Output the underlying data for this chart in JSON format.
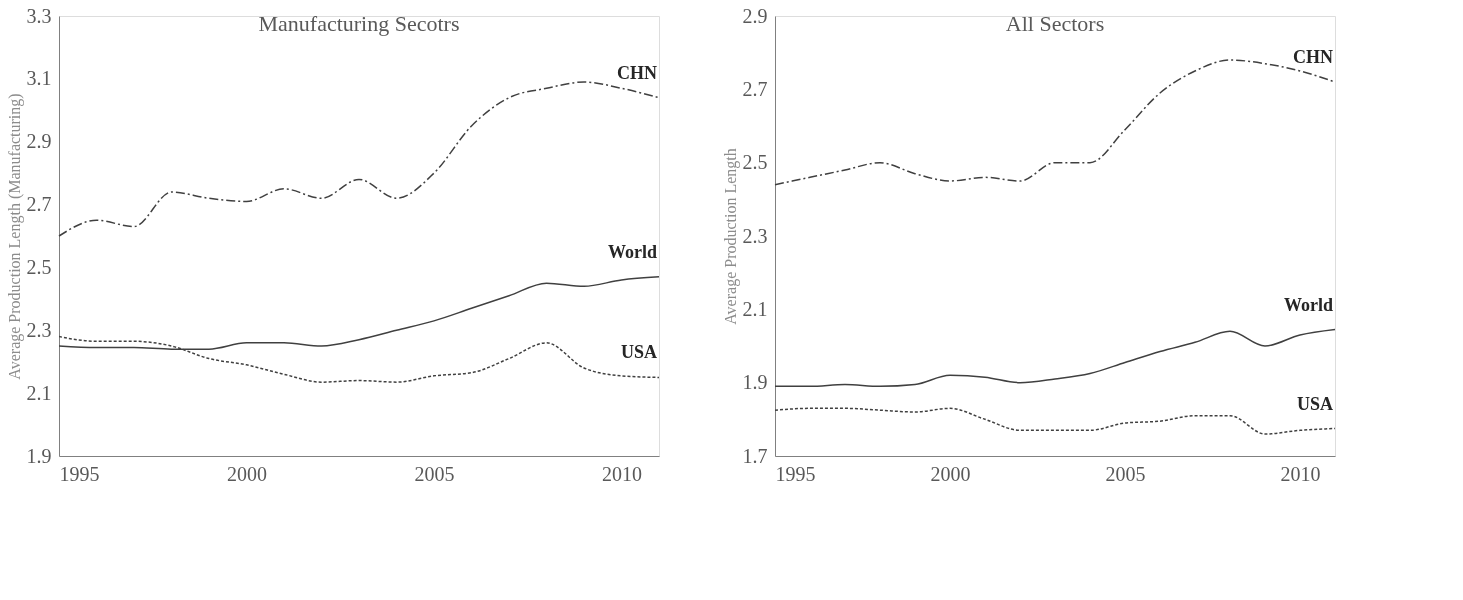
{
  "chart_data": [
    {
      "type": "line",
      "title": "Manufacturing Secotrs",
      "ylabel": "Average Production Length (Manufacturing)",
      "x": [
        1995,
        1996,
        1997,
        1998,
        1999,
        2000,
        2001,
        2002,
        2003,
        2004,
        2005,
        2006,
        2007,
        2008,
        2009,
        2010,
        2011
      ],
      "xlim": [
        1995,
        2011
      ],
      "xticks": [
        1995,
        2000,
        2005,
        2010
      ],
      "ylim": [
        1.9,
        3.3
      ],
      "yticks": [
        1.9,
        2.1,
        2.3,
        2.5,
        2.7,
        2.9,
        3.1,
        3.3
      ],
      "grid": false,
      "marker": "none",
      "series": [
        {
          "name": "CHN",
          "color": "#404040",
          "line_style": "dashed",
          "values": [
            2.6,
            2.65,
            2.63,
            2.74,
            2.72,
            2.71,
            2.75,
            2.72,
            2.78,
            2.72,
            2.8,
            2.95,
            3.04,
            3.07,
            3.09,
            3.07,
            3.04
          ]
        },
        {
          "name": "World",
          "color": "#404040",
          "line_style": "solid",
          "values": [
            2.25,
            2.245,
            2.245,
            2.24,
            2.24,
            2.26,
            2.26,
            2.25,
            2.27,
            2.3,
            2.33,
            2.37,
            2.41,
            2.45,
            2.44,
            2.46,
            2.47
          ]
        },
        {
          "name": "USA",
          "color": "#404040",
          "line_style": "dotted",
          "values": [
            2.28,
            2.265,
            2.265,
            2.25,
            2.21,
            2.19,
            2.16,
            2.135,
            2.14,
            2.135,
            2.155,
            2.165,
            2.21,
            2.26,
            2.18,
            2.155,
            2.15
          ]
        }
      ]
    },
    {
      "type": "line",
      "title": "All Sectors",
      "ylabel": "Average Production Length",
      "x": [
        1995,
        1996,
        1997,
        1998,
        1999,
        2000,
        2001,
        2002,
        2003,
        2004,
        2005,
        2006,
        2007,
        2008,
        2009,
        2010,
        2011
      ],
      "xlim": [
        1995,
        2011
      ],
      "xticks": [
        1995,
        2000,
        2005,
        2010
      ],
      "ylim": [
        1.7,
        2.9
      ],
      "yticks": [
        1.7,
        1.9,
        2.1,
        2.3,
        2.5,
        2.7,
        2.9
      ],
      "grid": false,
      "marker": "none",
      "series": [
        {
          "name": "CHN",
          "color": "#404040",
          "line_style": "dashed",
          "values": [
            2.44,
            2.46,
            2.48,
            2.5,
            2.47,
            2.45,
            2.46,
            2.45,
            2.5,
            2.5,
            2.59,
            2.69,
            2.75,
            2.78,
            2.77,
            2.75,
            2.72
          ]
        },
        {
          "name": "World",
          "color": "#404040",
          "line_style": "solid",
          "values": [
            1.89,
            1.89,
            1.895,
            1.89,
            1.895,
            1.92,
            1.915,
            1.9,
            1.91,
            1.925,
            1.955,
            1.985,
            2.01,
            2.04,
            2.0,
            2.03,
            2.045
          ]
        },
        {
          "name": "USA",
          "color": "#404040",
          "line_style": "dotted",
          "values": [
            1.825,
            1.83,
            1.83,
            1.825,
            1.82,
            1.83,
            1.8,
            1.77,
            1.77,
            1.77,
            1.79,
            1.795,
            1.81,
            1.81,
            1.76,
            1.77,
            1.775
          ]
        }
      ]
    }
  ]
}
